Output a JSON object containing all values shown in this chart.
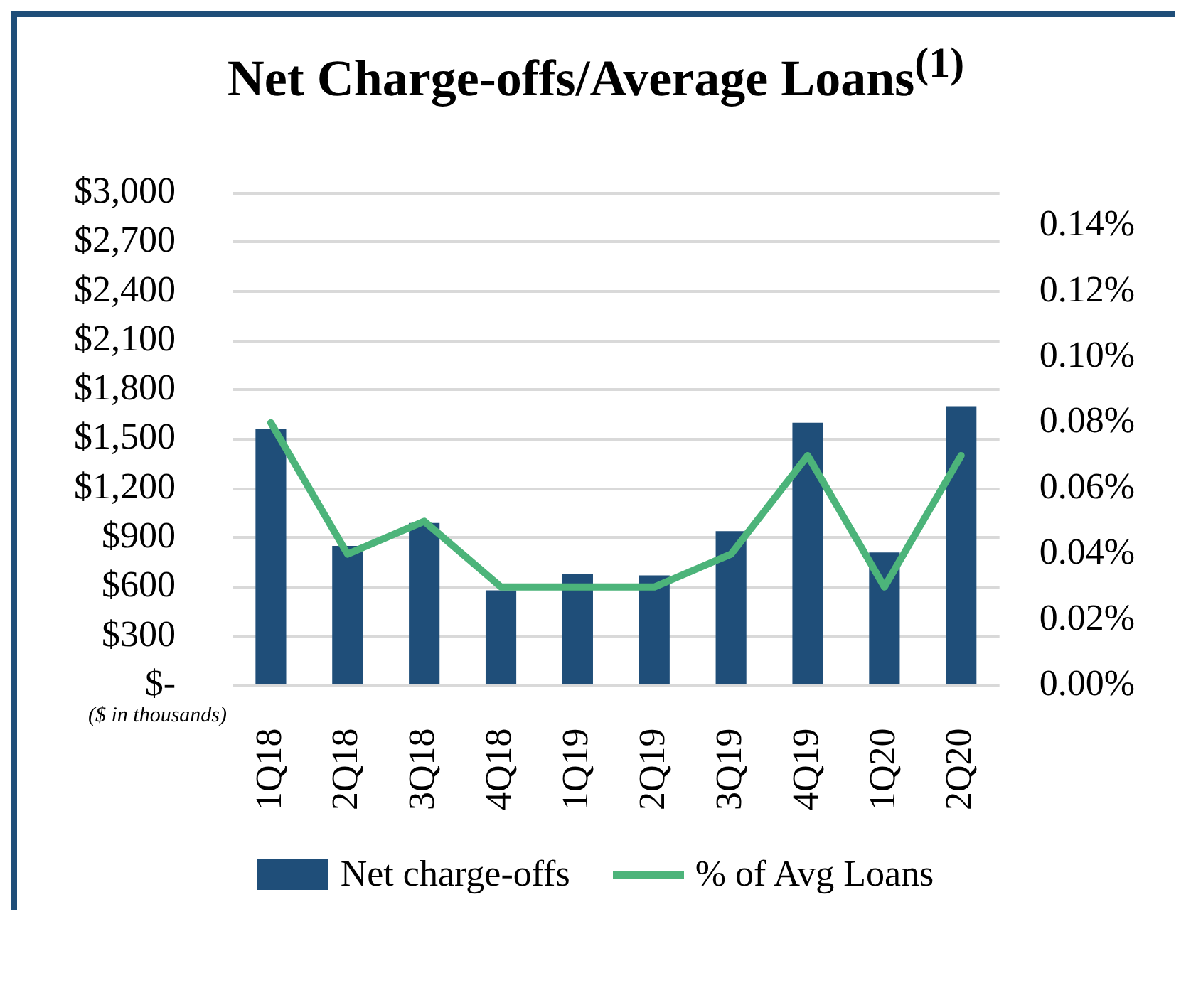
{
  "chart_data": {
    "type": "bar",
    "title": "Net Charge-offs/Average Loans$^{(1)}$",
    "categories": [
      "1Q18",
      "2Q18",
      "3Q18",
      "4Q18",
      "1Q19",
      "2Q19",
      "3Q19",
      "4Q19",
      "1Q20",
      "2Q20"
    ],
    "series": [
      {
        "name": "Net charge-offs",
        "type": "bar",
        "color": "#1f4e79",
        "values": [
          1560,
          850,
          990,
          580,
          680,
          670,
          940,
          1600,
          810,
          1700
        ]
      },
      {
        "name": "% of Avg Loans",
        "type": "line",
        "axis": "y2",
        "color": "#4cb47a",
        "values": [
          0.08,
          0.04,
          0.05,
          0.03,
          0.03,
          0.03,
          0.04,
          0.07,
          0.03,
          0.07
        ]
      }
    ],
    "ylim": [
      0,
      3000
    ],
    "yticks": [
      {
        "value": 0,
        "label": "$-"
      },
      {
        "value": 300,
        "label": "$300"
      },
      {
        "value": 600,
        "label": "$600"
      },
      {
        "value": 900,
        "label": "$900"
      },
      {
        "value": 1200,
        "label": "$1,200"
      },
      {
        "value": 1500,
        "label": "$1,500"
      },
      {
        "value": 1800,
        "label": "$1,800"
      },
      {
        "value": 2100,
        "label": "$2,100"
      },
      {
        "value": 2400,
        "label": "$2,400"
      },
      {
        "value": 2700,
        "label": "$2,700"
      },
      {
        "value": 3000,
        "label": "$3,000"
      }
    ],
    "y2lim": [
      0,
      0.15
    ],
    "y2ticks": [
      {
        "value": 0,
        "label": "0.00%"
      },
      {
        "value": 0.02,
        "label": "0.02%"
      },
      {
        "value": 0.04,
        "label": "0.04%"
      },
      {
        "value": 0.06,
        "label": "0.06%"
      },
      {
        "value": 0.08,
        "label": "0.08%"
      },
      {
        "value": 0.1,
        "label": "0.10%"
      },
      {
        "value": 0.12,
        "label": "0.12%"
      },
      {
        "value": 0.14,
        "label": "0.14%"
      }
    ],
    "grid": "y",
    "legend": "bottom",
    "marker": "none",
    "annotations": [
      "($ in thousands)"
    ]
  }
}
